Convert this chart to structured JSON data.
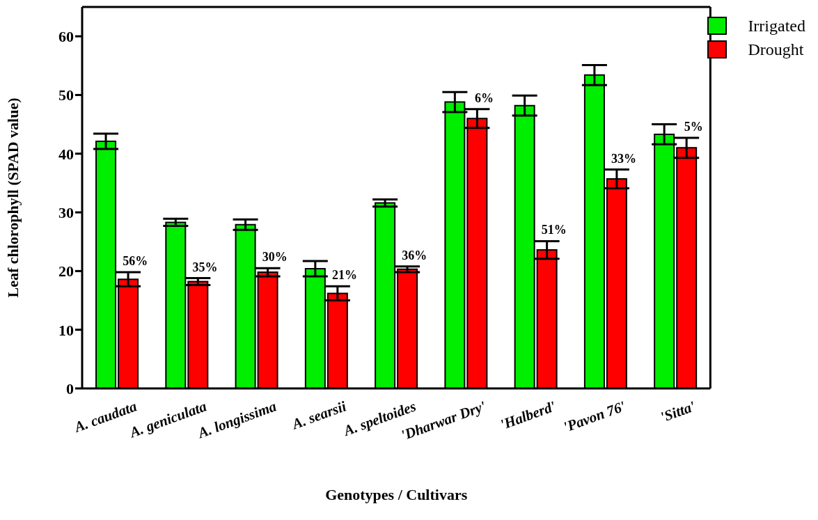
{
  "chart_data": {
    "type": "bar",
    "xlabel": "Genotypes / Cultivars",
    "ylabel": "Leaf chlorophyll (SPAD value)",
    "categories": [
      "A. caudata",
      "A. geniculata",
      "A. longissima",
      "A. searsii",
      "A. speltoides",
      "'Dharwar Dry'",
      "'Halberd'",
      "'Pavon 76'",
      "'Sitta'"
    ],
    "series": [
      {
        "name": "Irrigated",
        "color": "#00ee00",
        "values": [
          42.1,
          28.3,
          27.9,
          20.4,
          31.6,
          48.8,
          48.2,
          53.4,
          43.3
        ],
        "errors": [
          1.3,
          0.6,
          0.9,
          1.3,
          0.6,
          1.7,
          1.7,
          1.7,
          1.7
        ]
      },
      {
        "name": "Drought",
        "color": "#ff0000",
        "values": [
          18.6,
          18.2,
          19.8,
          16.2,
          20.3,
          46.0,
          23.6,
          35.7,
          41.0
        ],
        "errors": [
          1.2,
          0.6,
          0.7,
          1.2,
          0.5,
          1.6,
          1.5,
          1.6,
          1.7
        ]
      }
    ],
    "annotations": [
      {
        "text": "56%",
        "x": "A. caudata",
        "y": 19.8
      },
      {
        "text": "35%",
        "x": "A. geniculata",
        "y": 18.8
      },
      {
        "text": "30%",
        "x": "A. longissima",
        "y": 20.5
      },
      {
        "text": "21%",
        "x": "A. searsii",
        "y": 17.4
      },
      {
        "text": "36%",
        "x": "A. speltoides",
        "y": 20.8
      },
      {
        "text": "6%",
        "x": "'Dharwar Dry'",
        "y": 47.6
      },
      {
        "text": "51%",
        "x": "'Halberd'",
        "y": 25.1
      },
      {
        "text": "33%",
        "x": "'Pavon 76'",
        "y": 37.3
      },
      {
        "text": "5%",
        "x": "'Sitta'",
        "y": 42.7
      }
    ],
    "ylim": [
      0,
      65
    ],
    "yticks": [
      0,
      10,
      20,
      30,
      40,
      50,
      60
    ],
    "grid": false,
    "legend": "top right"
  }
}
